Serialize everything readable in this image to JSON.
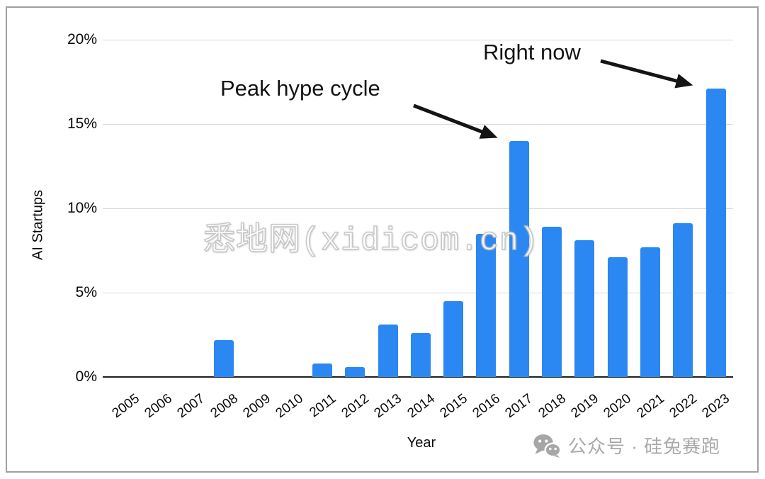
{
  "chart_data": {
    "type": "bar",
    "title": "",
    "categories": [
      "2005",
      "2006",
      "2007",
      "2008",
      "2009",
      "2010",
      "2011",
      "2012",
      "2013",
      "2014",
      "2015",
      "2016",
      "2017",
      "2018",
      "2019",
      "2020",
      "2021",
      "2022",
      "2023"
    ],
    "values": [
      0,
      0,
      0,
      2.2,
      0,
      0,
      0.8,
      0.6,
      3.1,
      2.6,
      4.5,
      8.5,
      14.0,
      8.9,
      8.1,
      7.1,
      7.7,
      9.1,
      17.1
    ],
    "xlabel": "Year",
    "ylabel": "AI Startups",
    "ylim": [
      0,
      20
    ],
    "yticks": [
      {
        "value": 0,
        "label": "0%"
      },
      {
        "value": 5,
        "label": "5%"
      },
      {
        "value": 10,
        "label": "10%"
      },
      {
        "value": 15,
        "label": "15%"
      },
      {
        "value": 20,
        "label": "20%"
      }
    ],
    "grid": true,
    "legend_position": "none",
    "bar_color": "#2b87f1",
    "annotations": [
      {
        "text": "Peak hype cycle",
        "target_year": "2017"
      },
      {
        "text": "Right now",
        "target_year": "2023"
      }
    ]
  },
  "annotations": {
    "peak_label": "Peak hype cycle",
    "now_label": "Right now"
  },
  "watermark": {
    "text": "悉地网(xidicom.cn)"
  },
  "footer": {
    "wechat_text": "公众号 · 硅兔赛跑"
  },
  "colors": {
    "bar": "#2b87f1",
    "grid": "#d9d9d9",
    "axis_line": "#1f1f1f",
    "text": "#0a0a0a",
    "card_border": "#a0a0a0",
    "watermark_fill": "#ffffff",
    "footer_text": "#a9a9a9"
  }
}
